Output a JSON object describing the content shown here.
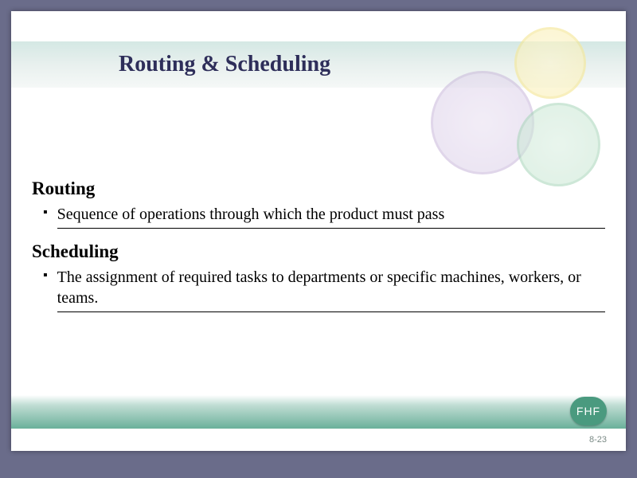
{
  "title": "Routing & Scheduling",
  "sections": [
    {
      "heading": "Routing",
      "bullet": "Sequence of operations through which the product must pass"
    },
    {
      "heading": "Scheduling",
      "bullet": "The assignment of required tasks to departments or specific machines, workers, or teams."
    }
  ],
  "footer": {
    "badge": "FHF",
    "page": "8-23"
  },
  "colors": {
    "background": "#6a6c8a",
    "slide_bg": "#ffffff",
    "title_color": "#2e2e5a",
    "circle_yellow": "#f5e89a",
    "circle_purple": "#c7b6d9",
    "circle_green": "#a5d4b8",
    "footer_gradient_end": "#6ab09a",
    "badge_bg": "#4a9a7f"
  }
}
